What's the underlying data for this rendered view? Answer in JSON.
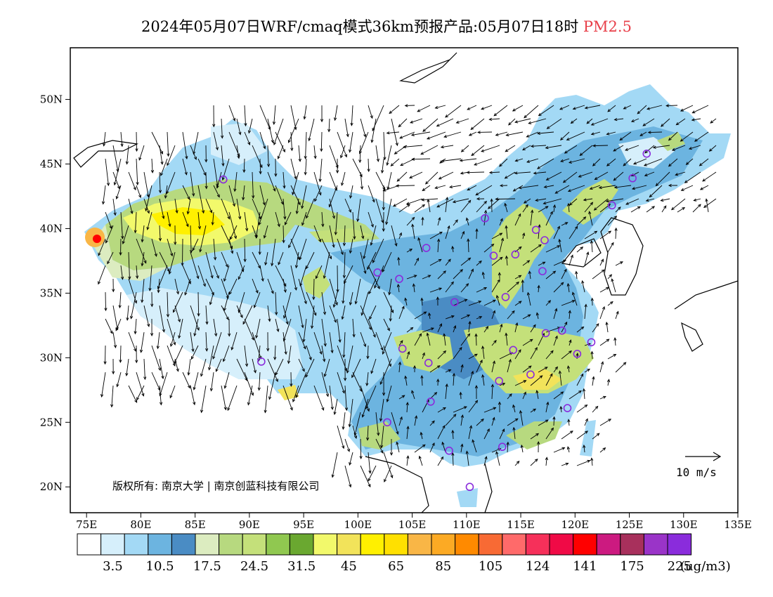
{
  "title": {
    "main": "2024年05月07日WRF/cmaq模式36km预报产品:05月07日18时",
    "species": "PM2.5",
    "species_color": "#e8404a"
  },
  "map": {
    "lat_labels": [
      "50N",
      "45N",
      "40N",
      "35N",
      "30N",
      "25N",
      "20N"
    ],
    "lat_values": [
      50,
      45,
      40,
      35,
      30,
      25,
      20
    ],
    "lon_labels": [
      "75E",
      "80E",
      "85E",
      "90E",
      "95E",
      "100E",
      "105E",
      "110E",
      "115E",
      "120E",
      "125E",
      "130E",
      "135E"
    ],
    "lon_values": [
      75,
      80,
      85,
      90,
      95,
      100,
      105,
      110,
      115,
      120,
      125,
      130,
      135
    ],
    "lon_range": [
      73.5,
      135
    ],
    "lat_range": [
      18,
      54
    ],
    "copyright": "版权所有: 南京大学 | 南京创蓝科技有限公司",
    "wind_scale_label": "10 m/s"
  },
  "legend": {
    "colors": [
      "#ffffff",
      "#d6effb",
      "#a3d9f5",
      "#6cb4e0",
      "#4a8cc4",
      "#dcecc0",
      "#b7d97f",
      "#c4e07a",
      "#90c850",
      "#6aa830",
      "#f2f96b",
      "#f2e35a",
      "#fff000",
      "#ffe000",
      "#f9b646",
      "#fcaa24",
      "#ff8a00",
      "#f86a34",
      "#ff6a6a",
      "#f6305a",
      "#f00a46",
      "#ff0000",
      "#cc1a80",
      "#a8305c",
      "#9a34c8",
      "#8a2cdc"
    ],
    "tick_labels": [
      "3.5",
      "10.5",
      "17.5",
      "24.5",
      "31.5",
      "45",
      "65",
      "85",
      "105",
      "124",
      "141",
      "175",
      "225"
    ],
    "unit": "(ug/m3)"
  },
  "chart_data": {
    "type": "heatmap",
    "title": "2024年05月07日WRF/cmaq模式36km预报产品:05月07日18时 PM2.5",
    "xlabel": "",
    "ylabel": "",
    "xlim": [
      73.5,
      135
    ],
    "ylim": [
      18,
      54
    ],
    "color_scale_ticks": [
      3.5,
      10.5,
      17.5,
      24.5,
      31.5,
      45,
      65,
      85,
      105,
      124,
      141,
      175,
      225
    ],
    "unit": "(ug/m3)"
  }
}
